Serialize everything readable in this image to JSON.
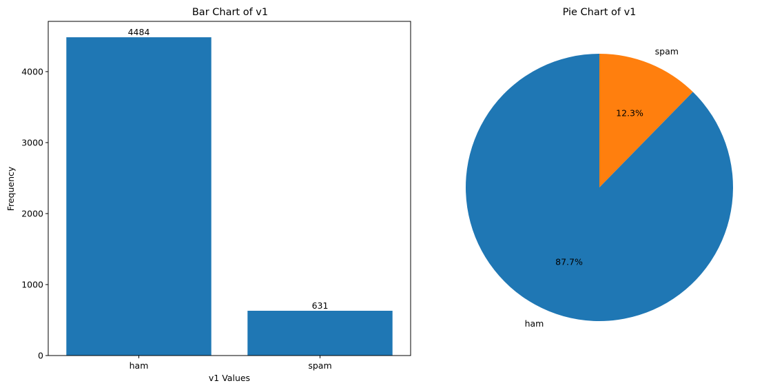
{
  "chart_data": [
    {
      "type": "bar",
      "title": "Bar Chart of v1",
      "xlabel": "v1 Values",
      "ylabel": "Frequency",
      "categories": [
        "ham",
        "spam"
      ],
      "values": [
        4484,
        631
      ],
      "data_labels": [
        "4484",
        "631"
      ],
      "ylim": [
        0,
        4708
      ],
      "yticks": [
        0,
        1000,
        2000,
        3000,
        4000
      ],
      "ytick_labels": [
        "0",
        "1000",
        "2000",
        "3000",
        "4000"
      ],
      "grid": false,
      "color": "#1f77b4"
    },
    {
      "type": "pie",
      "title": "Pie Chart of v1",
      "labels": [
        "ham",
        "spam"
      ],
      "values": [
        4484,
        631
      ],
      "percent_labels": [
        "87.7%",
        "12.3%"
      ],
      "colors": [
        "#1f77b4",
        "#ff7f0e"
      ],
      "start_angle_deg": 90,
      "direction": "clockwise-from-top (spam first)"
    }
  ]
}
